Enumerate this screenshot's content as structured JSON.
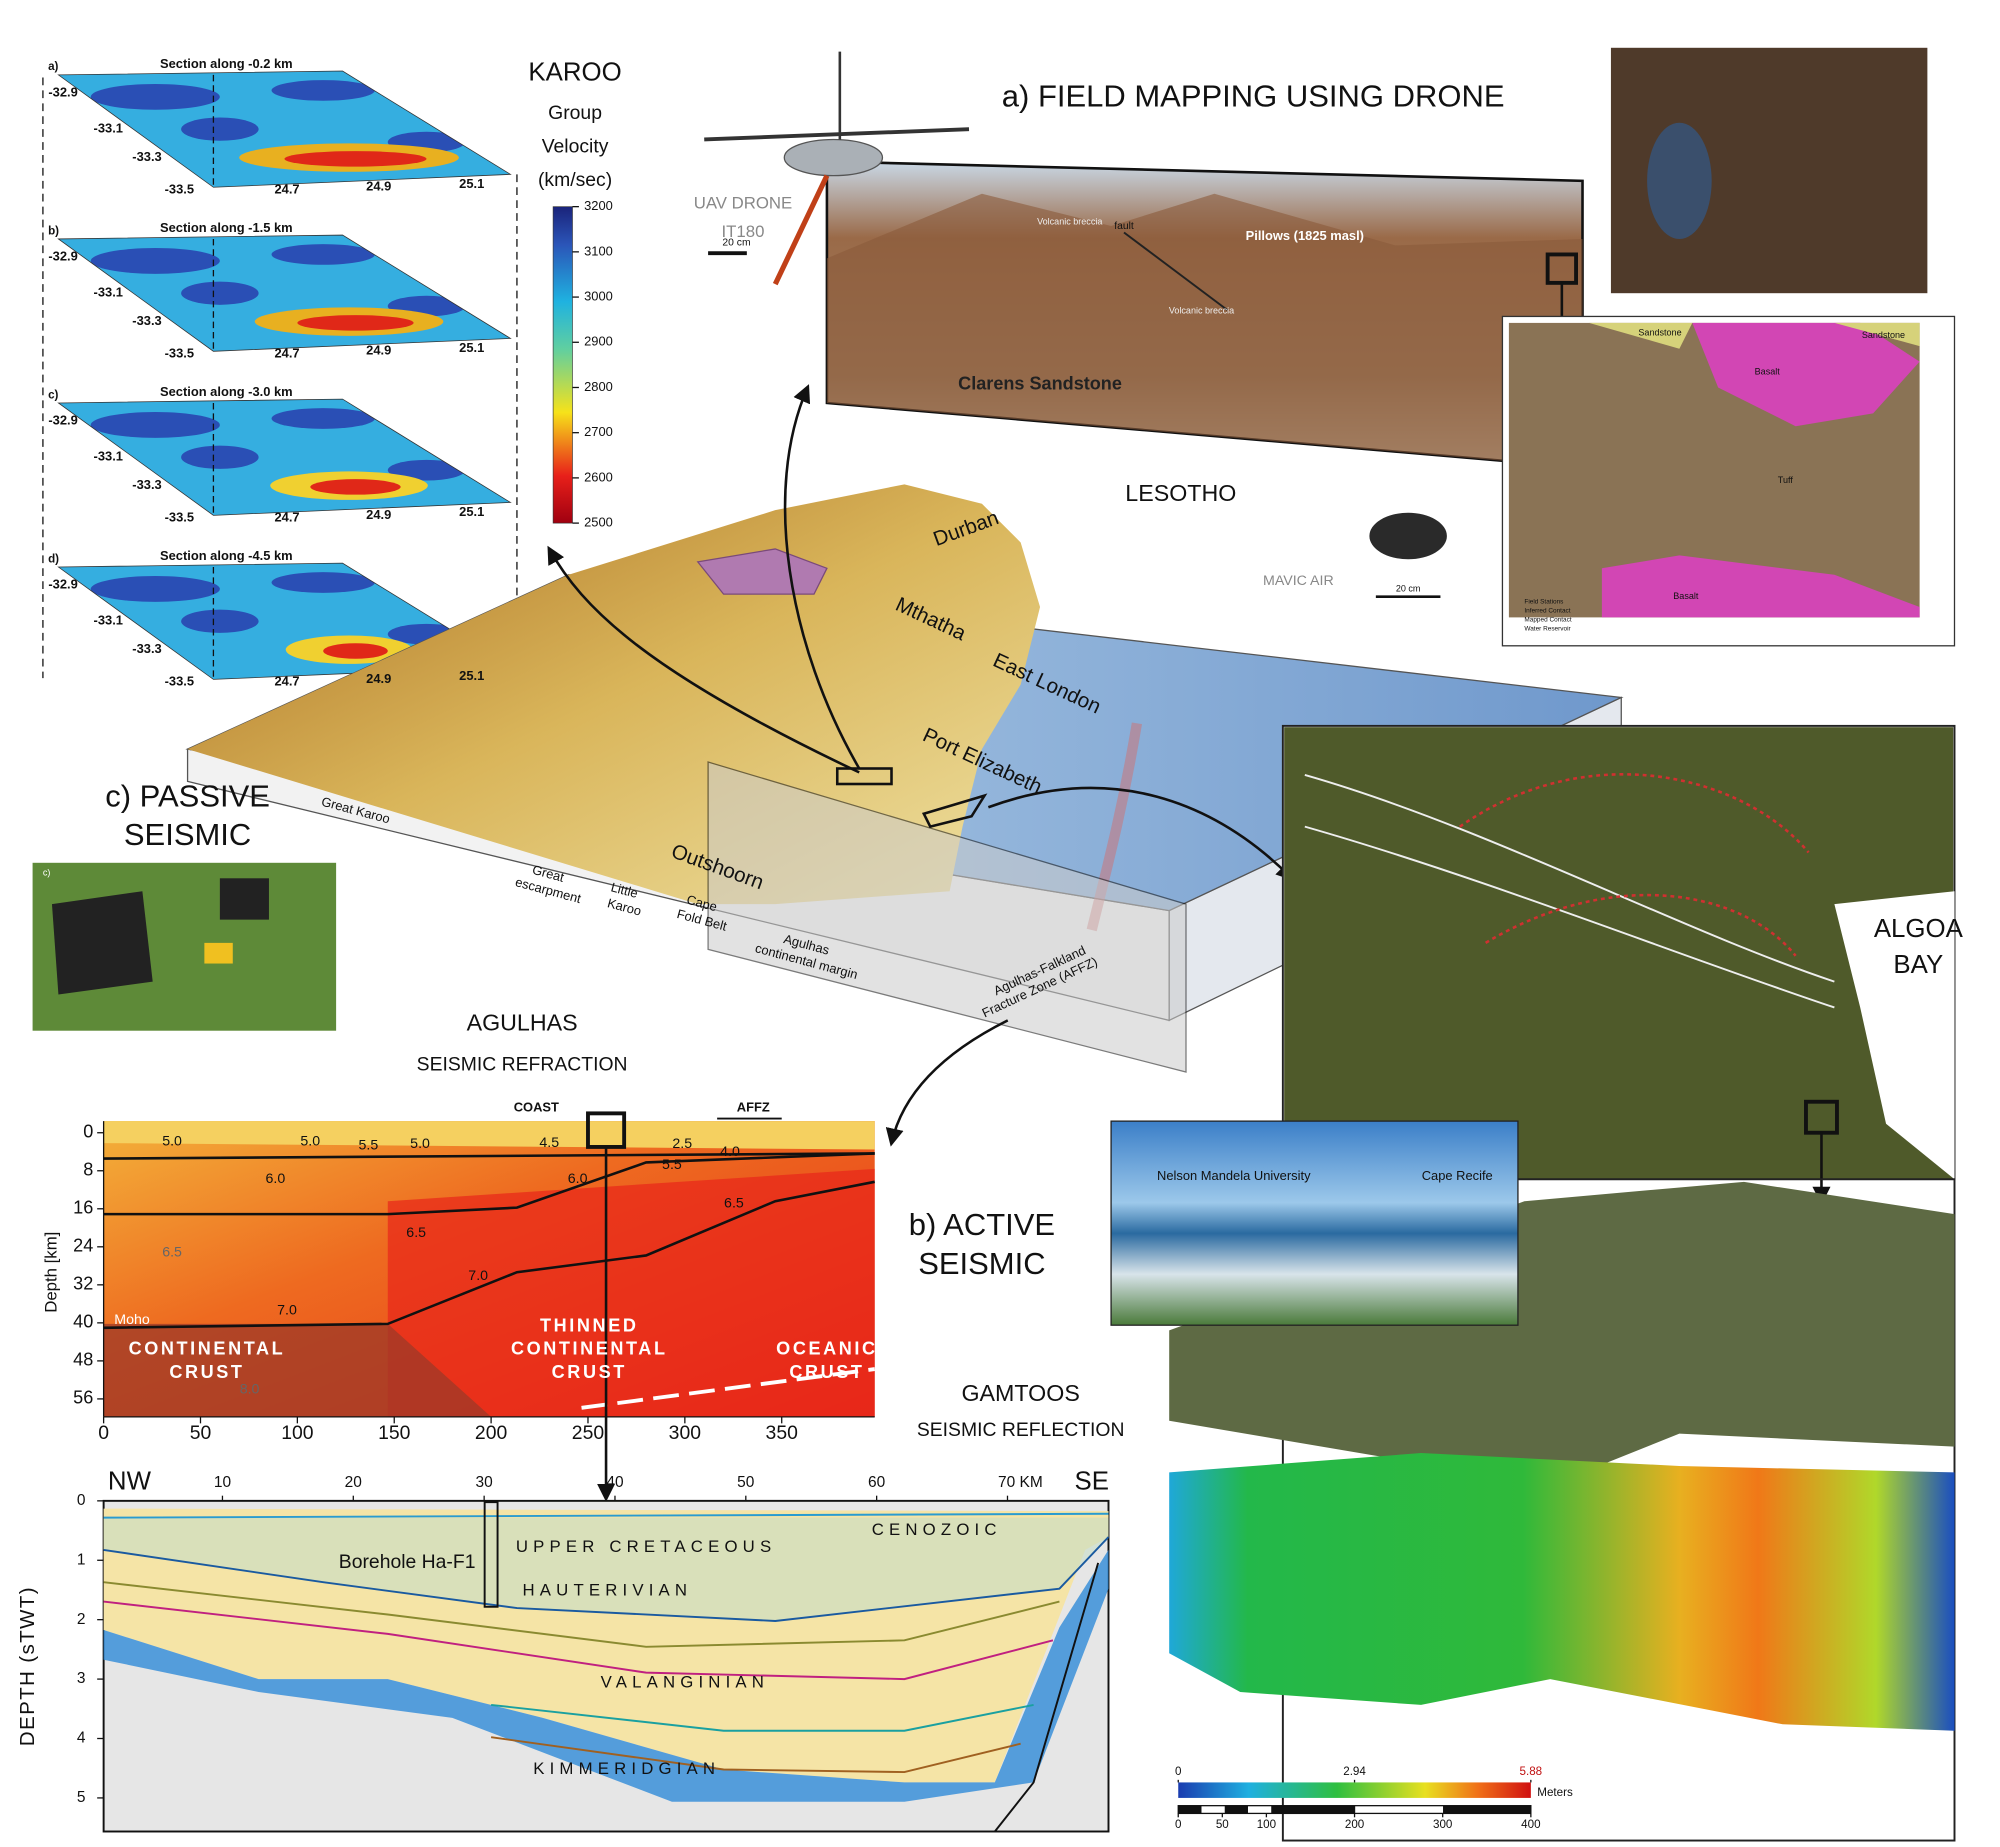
{
  "karoo": {
    "title": "KAROO",
    "subtitle": [
      "Group",
      "Velocity",
      "(km/sec)"
    ],
    "colorbar_ticks": [
      3200,
      3100,
      3000,
      2900,
      2800,
      2700,
      2600,
      2500
    ],
    "sections": [
      {
        "letter": "a)",
        "title": "Section along -0.2 km",
        "lat_ticks": [
          -32.9,
          -33.1,
          -33.3,
          -33.5
        ],
        "lon_ticks": [
          24.7,
          24.9,
          25.1
        ]
      },
      {
        "letter": "b)",
        "title": "Section along -1.5 km",
        "lat_ticks": [
          -32.9,
          -33.1,
          -33.3,
          -33.5
        ],
        "lon_ticks": [
          24.7,
          24.9,
          25.1
        ]
      },
      {
        "letter": "c)",
        "title": "Section along -3.0 km",
        "lat_ticks": [
          -32.9,
          -33.1,
          -33.3,
          -33.5
        ],
        "lon_ticks": [
          24.7,
          24.9,
          25.1
        ]
      },
      {
        "letter": "d)",
        "title": "Section along -4.5 km",
        "lat_ticks": [
          -32.9,
          -33.1,
          -33.3,
          -33.5
        ],
        "lon_ticks": [
          24.7,
          24.9,
          25.1
        ]
      }
    ]
  },
  "field_mapping": {
    "title": "a) FIELD MAPPING USING DRONE",
    "uav": [
      "UAV DRONE",
      "IT180"
    ],
    "uav_scale": "20 cm",
    "photo_labels": [
      "fault",
      "Volcanic breccia",
      "Pillows (1825 masl)",
      "Volcanic breccia",
      "Clarens Sandstone"
    ],
    "mavic": "MAVIC AIR",
    "mavic_scale": "20 cm",
    "map_labels": [
      "Sandstone",
      "Basalt",
      "Sandstone",
      "Tuff",
      "Basalt"
    ],
    "map_legend": [
      "Field Stations",
      "Inferred Contact",
      "Mapped Contact",
      "Water Reservoir"
    ]
  },
  "region": {
    "country": "LESOTHO",
    "places": [
      "Durban",
      "Mthatha",
      "East London",
      "Port Elizabeth",
      "Outshoorn"
    ],
    "block_labels": [
      [
        "Great Karoo"
      ],
      [
        "Great",
        "escarpment"
      ],
      [
        "Little",
        "Karoo"
      ],
      [
        "Cape",
        "Fold Belt"
      ],
      [
        "Agulhas",
        "continental margin"
      ],
      [
        "Agulhas-Falkland",
        "Fracture Zone (AFFZ)"
      ]
    ]
  },
  "passive": {
    "title": [
      "c) PASSIVE",
      "SEISMIC"
    ],
    "photo_letter": "c)"
  },
  "active": {
    "title": [
      "b) ACTIVE",
      "SEISMIC"
    ]
  },
  "algoa": {
    "title": [
      "ALGOA",
      "BAY"
    ],
    "photo_labels": [
      "Nelson Mandela University",
      "Cape Recife"
    ],
    "dem_ticks": [
      0,
      2.94,
      5.88
    ],
    "dem_unit": "Meters",
    "scale_ticks": [
      0,
      50,
      100,
      200,
      300,
      400
    ]
  },
  "refraction": {
    "title": "AGULHAS",
    "subtitle": "SEISMIC REFRACTION",
    "y_label": "Depth [km]",
    "yticks": [
      0,
      8,
      16,
      24,
      32,
      40,
      48,
      56
    ],
    "xticks": [
      0,
      50,
      100,
      150,
      200,
      250,
      300,
      350
    ],
    "markers": [
      "COAST",
      "AFFZ"
    ],
    "velocity_labels": [
      "5.0",
      "5.0",
      "5.5",
      "5.0",
      "4.5",
      "2.5",
      "4.0",
      "5.5",
      "6.0",
      "6.0",
      "6.5",
      "6.5",
      "6.5",
      "7.0",
      "7.0",
      "8.0"
    ],
    "moho": "Moho",
    "crust_labels": [
      [
        "CONTINENTAL",
        "CRUST"
      ],
      [
        "THINNED",
        "CONTINENTAL",
        "CRUST"
      ],
      [
        "OCEANIC",
        "CRUST"
      ]
    ]
  },
  "reflection": {
    "title": "GAMTOOS",
    "subtitle": "SEISMIC REFLECTION",
    "ends": [
      "NW",
      "SE"
    ],
    "xticks": [
      10,
      20,
      30,
      40,
      50,
      60,
      {
        "value": 70,
        "label": "70 KM"
      }
    ],
    "y_label": "DEPTH (sTWT)",
    "yticks": [
      0,
      1,
      2,
      3,
      4,
      5
    ],
    "units": [
      "CENOZOIC",
      "UPPER CRETACEOUS",
      "HAUTERIVIAN",
      "VALANGINIAN",
      "KIMMERIDGIAN"
    ],
    "borehole": "Borehole Ha-F1"
  }
}
